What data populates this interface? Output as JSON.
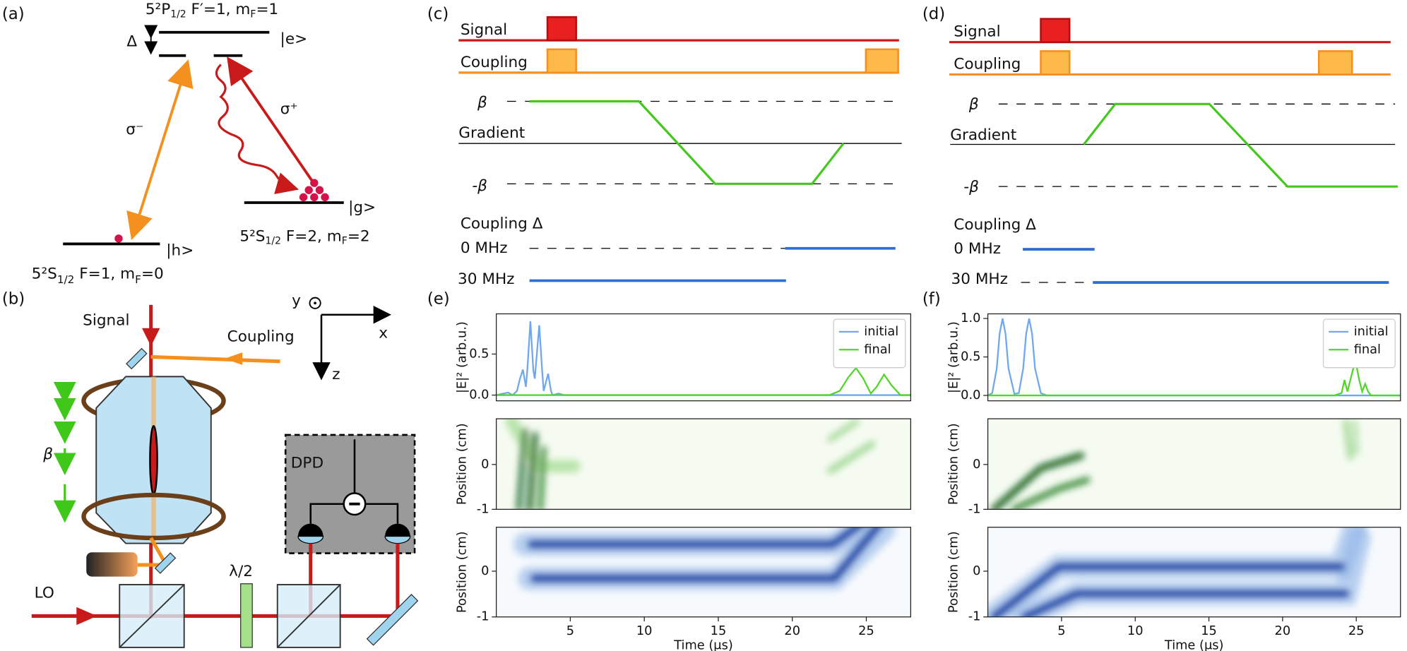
{
  "panel_labels": {
    "a": "(a)",
    "b": "(b)",
    "c": "(c)",
    "d": "(d)",
    "e": "(e)",
    "f": "(f)"
  },
  "level_diagram": {
    "excited": {
      "parts": [
        "5²P",
        "1/2",
        " F′=1, m",
        "F",
        "=1"
      ]
    },
    "excited_state": "|e>",
    "detuning": "Δ",
    "sigma_minus": "σ⁻",
    "sigma_plus": "σ⁺",
    "ground_g": {
      "parts": [
        "5²S",
        "1/2",
        " F=2, m",
        "F",
        "=2"
      ]
    },
    "ground_g_state": "|g>",
    "ground_h": {
      "parts": [
        "5²S",
        "1/2",
        " F=1, m",
        "F",
        "=0"
      ]
    },
    "ground_h_state": "|h>"
  },
  "setup": {
    "signal": "Signal",
    "coupling": "Coupling",
    "y": "y",
    "x": "x",
    "z": "z",
    "beta": "β",
    "dpd": "DPD",
    "half_wave": "λ/2",
    "lo": "LO"
  },
  "sequence_c": {
    "signal": "Signal",
    "coupling": "Coupling",
    "beta": "β",
    "gradient": "Gradient",
    "neg_beta": "-β",
    "coupling_delta": "Coupling Δ",
    "zero": "0 MHz",
    "thirty": "30 MHz"
  },
  "sequence_d": {
    "signal": "Signal",
    "coupling": "Coupling",
    "beta": "β",
    "gradient": "Gradient",
    "neg_beta": "-β",
    "coupling_delta": "Coupling Δ",
    "zero": "0 MHz",
    "thirty": "30 MHz"
  },
  "chart_data": [
    {
      "type": "line",
      "ylabel": "|E|² (arb.u.)",
      "xlim": [
        0,
        28
      ],
      "ylim": [
        -0.07,
        0.99
      ],
      "yticks": [
        {
          "value": 0,
          "label": "0.0"
        },
        {
          "value": 0.5,
          "label": "0.5"
        }
      ],
      "legend": "upper right",
      "series": [
        {
          "name": "initial",
          "color": "#6fa8ef",
          "x": [
            0,
            0.8,
            1.1,
            1.4,
            1.6,
            1.8,
            2.0,
            2.1,
            2.3,
            2.5,
            2.6,
            2.9,
            3.1,
            3.2,
            3.5,
            3.7,
            3.8,
            4.2,
            4.6,
            5,
            28
          ],
          "values": [
            0,
            0.03,
            0,
            0.05,
            0.2,
            0.31,
            0.1,
            0.3,
            0.9,
            0.3,
            0.2,
            0.85,
            0.3,
            0.05,
            0.26,
            0.05,
            0,
            0.02,
            0,
            0,
            0
          ]
        },
        {
          "name": "final",
          "color": "#52d62a",
          "x": [
            0,
            22.5,
            23.2,
            23.8,
            24.3,
            24.8,
            25.3,
            25.7,
            26.2,
            26.7,
            27.3,
            28
          ],
          "values": [
            0,
            0,
            0.05,
            0.22,
            0.33,
            0.2,
            0.02,
            0.1,
            0.25,
            0.12,
            0,
            0
          ]
        }
      ]
    },
    {
      "type": "heatmap",
      "ylabel": "Position (cm)",
      "xlim": [
        0,
        28
      ],
      "ylim": [
        -1,
        1.02
      ],
      "yticks": [
        -1,
        0
      ]
    },
    {
      "type": "heatmap",
      "ylabel": "Position (cm)",
      "xlabel": "Time (μs)",
      "xlim": [
        0,
        28
      ],
      "ylim": [
        -1,
        0.96
      ],
      "yticks": [
        -1,
        0
      ],
      "xticks": [
        5,
        10,
        15,
        20,
        25
      ]
    },
    {
      "type": "line",
      "ylabel": "|E|² (arb.u.)",
      "xlim": [
        0,
        28
      ],
      "ylim": [
        -0.07,
        1.06
      ],
      "yticks": [
        {
          "value": 0,
          "label": "0.0"
        },
        {
          "value": 0.5,
          "label": "0.5"
        },
        {
          "value": 1,
          "label": "1.0"
        }
      ],
      "legend": "upper right",
      "series": [
        {
          "name": "initial",
          "color": "#6fa8ef",
          "x": [
            0,
            0.3,
            0.6,
            0.8,
            1.0,
            1.2,
            1.4,
            1.8,
            2.1,
            2.4,
            2.6,
            2.8,
            3.0,
            3.2,
            3.6,
            4,
            28
          ],
          "values": [
            0,
            0.03,
            0.35,
            0.8,
            1.0,
            0.8,
            0.35,
            0.02,
            0.03,
            0.35,
            0.8,
            1.0,
            0.8,
            0.35,
            0.03,
            0,
            0
          ]
        },
        {
          "name": "final",
          "color": "#52d62a",
          "x": [
            0,
            23.5,
            24,
            24.2,
            24.4,
            24.6,
            24.8,
            25,
            25.2,
            25.4,
            25.6,
            25.8,
            26,
            28
          ],
          "values": [
            0,
            0,
            0.03,
            0.2,
            0.05,
            0.2,
            0.35,
            0.4,
            0.2,
            0.05,
            0.15,
            0.05,
            0,
            0
          ]
        }
      ]
    },
    {
      "type": "heatmap",
      "ylabel": "Position (cm)",
      "xlim": [
        0,
        28
      ],
      "ylim": [
        -1,
        1.02
      ],
      "yticks": [
        -1,
        0
      ]
    },
    {
      "type": "heatmap",
      "ylabel": "Position (cm)",
      "xlabel": "Time (μs)",
      "xlim": [
        0,
        28
      ],
      "ylim": [
        -1,
        0.96
      ],
      "yticks": [
        -1,
        0
      ],
      "xticks": [
        5,
        10,
        15,
        20,
        25
      ]
    }
  ]
}
